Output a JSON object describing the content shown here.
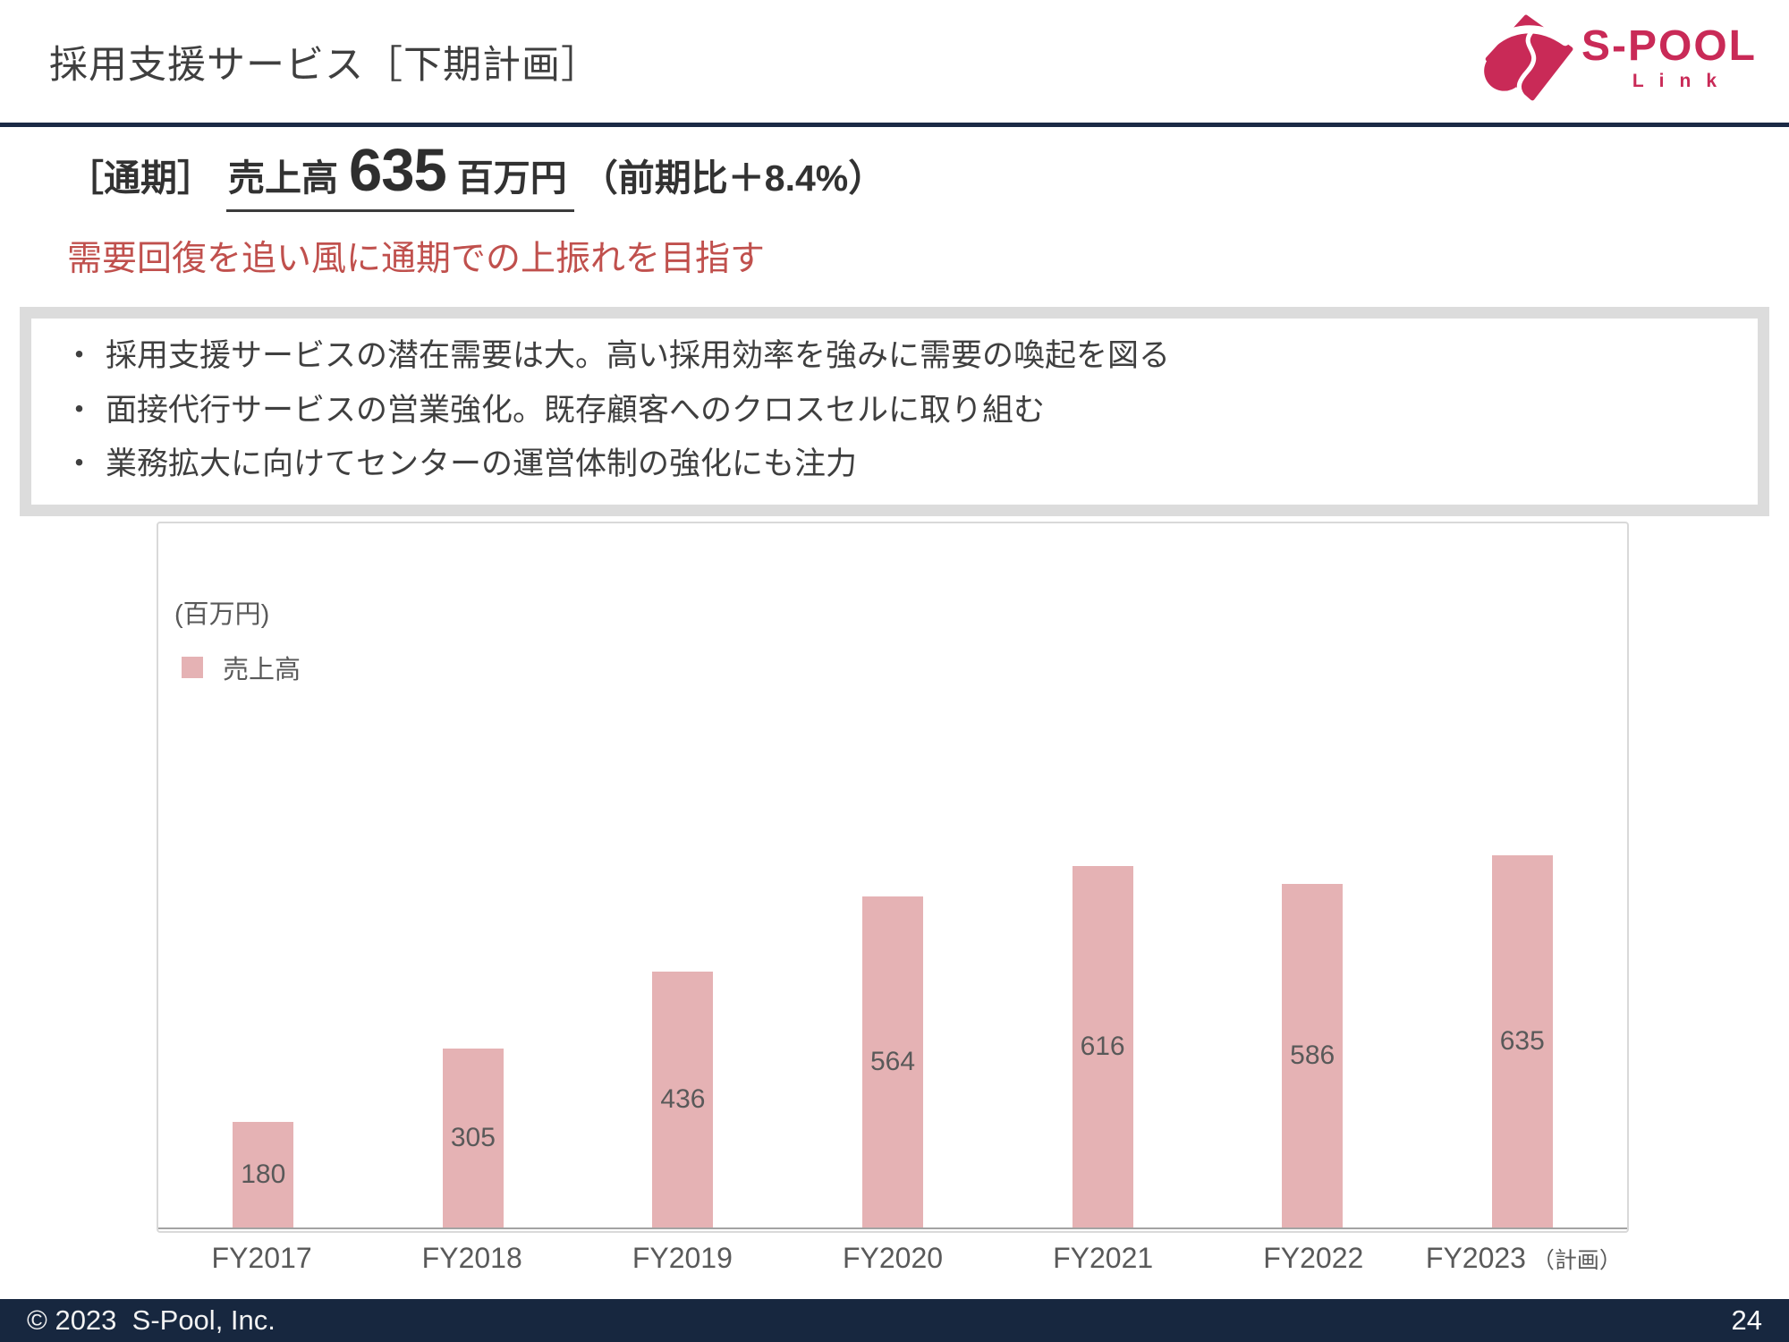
{
  "slide": {
    "title": "採用支援サービス［下期計画］",
    "copyright": "© 2023  S-Pool, Inc.",
    "page_number": "24"
  },
  "logo": {
    "brand": "S-POOL",
    "sub": "Link"
  },
  "headline": {
    "scope": "［通期］",
    "metric": "売上高",
    "value": "635",
    "unit": "百万円",
    "comparison": "（前期比＋8.4%）"
  },
  "subtitle": "需要回復を追い風に通期での上振れを目指す",
  "bullet_char": "・",
  "bullets": [
    "採用支援サービスの潜在需要は大。高い採用効率を強みに需要の喚起を図る",
    "面接代行サービスの営業強化。既存顧客へのクロスセルに取り組む",
    "業務拡大に向けてセンターの運営体制の強化にも注力"
  ],
  "chart_data": {
    "type": "bar",
    "title": "",
    "unit_label": "(百万円)",
    "legend": [
      "売上高"
    ],
    "legend_position": "top-left",
    "categories": [
      "FY2017",
      "FY2018",
      "FY2019",
      "FY2020",
      "FY2021",
      "FY2022",
      "FY2023"
    ],
    "category_suffixes": [
      "",
      "",
      "",
      "",
      "",
      "",
      "（計画）"
    ],
    "values": [
      180,
      305,
      436,
      564,
      616,
      586,
      635
    ],
    "series_name": "売上高",
    "xlabel": "",
    "ylabel": "",
    "ylim": [
      0,
      1200
    ],
    "grid": false,
    "data_label_position": "inside-center"
  },
  "colors": {
    "brand_crimson": "#c92a57",
    "bar_pink": "#e5b2b4",
    "accent_red": "#c0504d",
    "footer_navy": "#17273f",
    "text_dark": "#3f3f3f",
    "data_label_gray": "#595959",
    "border_gray": "#d9d9d9"
  }
}
